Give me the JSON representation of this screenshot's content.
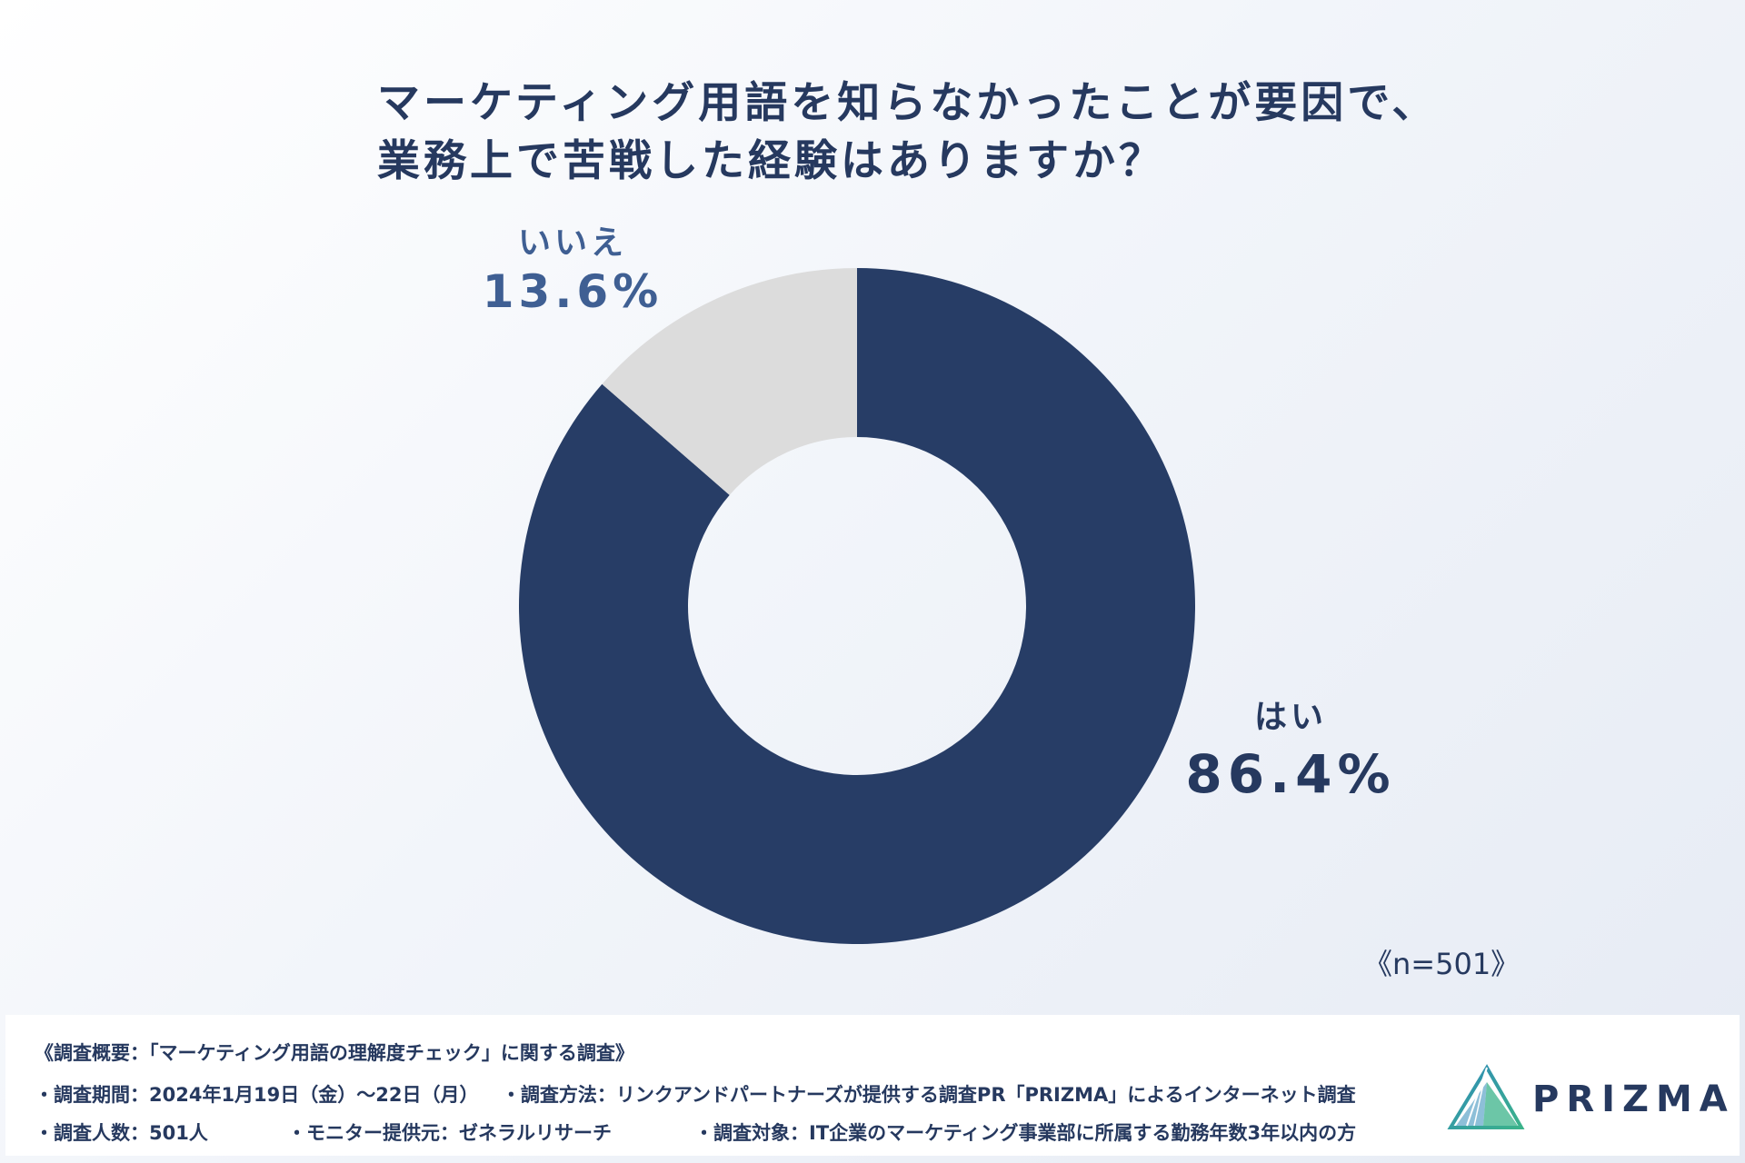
{
  "title": {
    "line1": "マーケティング用語を知らなかったことが要因で、",
    "line2": "業務上で苦戦した経験はありますか？"
  },
  "chart_data": {
    "type": "pie",
    "subtype": "donut",
    "title": "マーケティング用語を知らなかったことが要因で、業務上で苦戦した経験はありますか？",
    "categories": [
      "はい",
      "いいえ"
    ],
    "values": [
      86.4,
      13.6
    ],
    "value_labels": [
      "86.4%",
      "13.6%"
    ],
    "colors": [
      "#273d66",
      "#dcdcdc"
    ],
    "legend": "none",
    "annotation": "《n=501》"
  },
  "footer": {
    "heading": "《調査概要：「マーケティング用語の理解度チェック」に関する調査》",
    "period": "・調査期間：2024年1月19日（金）〜22日（月）",
    "method": "・調査方法：リンクアンドパートナーズが提供する調査PR「PRIZMA」によるインターネット調査",
    "count": "・調査人数：501人",
    "monitor": "・モニター提供元：ゼネラルリサーチ",
    "target": "・調査対象：IT企業のマーケティング事業部に所属する勤務年数3年以内の方"
  },
  "logo": {
    "text": "PRIZMA"
  }
}
